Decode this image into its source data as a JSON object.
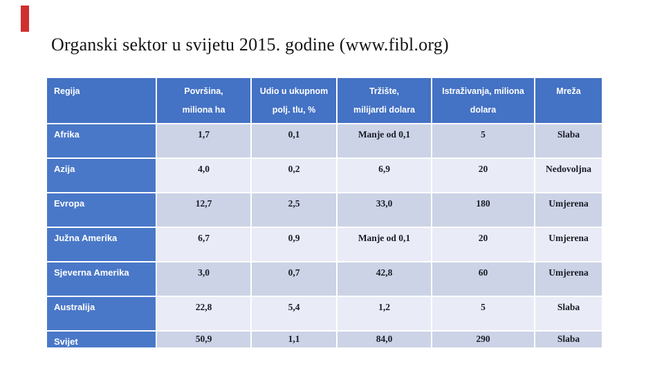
{
  "slide": {
    "title": "Organski sektor u svijetu 2015. godine (www.fibl.org)"
  },
  "colors": {
    "accent_red": "#cf2f2f",
    "header_blue": "#4472c4",
    "region_blue": "#4a78c8",
    "band_dark": "#ccd3e6",
    "band_light": "#e9ecf6",
    "header_text": "#ffffff",
    "data_text": "#1a1d26"
  },
  "table": {
    "columns": [
      {
        "lines": [
          "Regija"
        ]
      },
      {
        "lines": [
          "Površina,",
          "miliona ha"
        ]
      },
      {
        "lines": [
          "Udio u ukupnom",
          "polj. tlu, %"
        ]
      },
      {
        "lines": [
          "Tržište,",
          "milijardi dolara"
        ]
      },
      {
        "lines": [
          "Istraživanja, miliona",
          "dolara"
        ]
      },
      {
        "lines": [
          "Mreža"
        ]
      }
    ],
    "rows": [
      {
        "region": "Afrika",
        "area": "1,7",
        "share": "0,1",
        "market": "Manje od 0,1",
        "research": "5",
        "network": "Slaba"
      },
      {
        "region": "Azija",
        "area": "4,0",
        "share": "0,2",
        "market": "6,9",
        "research": "20",
        "network": "Nedovoljna"
      },
      {
        "region": "Evropa",
        "area": "12,7",
        "share": "2,5",
        "market": "33,0",
        "research": "180",
        "network": "Umjerena"
      },
      {
        "region": "Južna Amerika",
        "area": "6,7",
        "share": "0,9",
        "market": "Manje od 0,1",
        "research": "20",
        "network": "Umjerena"
      },
      {
        "region": "Sjeverna Amerika",
        "area": "3,0",
        "share": "0,7",
        "market": "42,8",
        "research": "60",
        "network": "Umjerena"
      },
      {
        "region": "Australija",
        "area": "22,8",
        "share": "5,4",
        "market": "1,2",
        "research": "5",
        "network": "Slaba"
      },
      {
        "region": "Svijet",
        "area": "50,9",
        "share": "1,1",
        "market": "84,0",
        "research": "290",
        "network": "Slaba"
      }
    ]
  }
}
